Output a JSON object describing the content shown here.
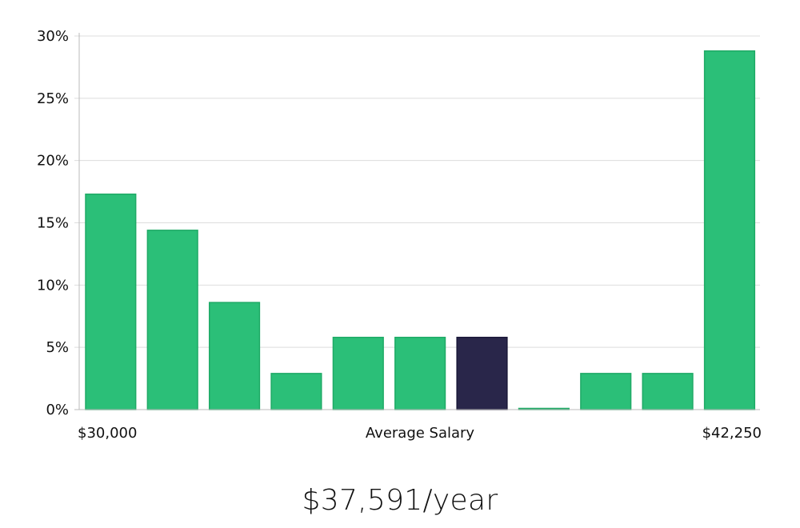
{
  "chart_data": {
    "type": "bar",
    "title": "",
    "xlabel": "Average Salary",
    "ylabel": "",
    "x_min_label": "$30,000",
    "x_max_label": "$42,250",
    "ylim": [
      0,
      30
    ],
    "yticks": [
      "0%",
      "5%",
      "10%",
      "15%",
      "20%",
      "25%",
      "30%"
    ],
    "y_tick_values": [
      0,
      5,
      10,
      15,
      20,
      25,
      30
    ],
    "grid": true,
    "values": [
      17.3,
      14.4,
      8.6,
      2.9,
      5.8,
      5.8,
      5.8,
      0.0,
      2.9,
      2.9,
      28.8
    ],
    "highlight_index": 6,
    "colors": {
      "bar": "#2bbf78",
      "bar_stroke": "#1faa66",
      "highlight": "#29264a",
      "grid": "#dddddd",
      "axis": "#bbbbbb"
    }
  },
  "headline": {
    "salary": "$37,591/year"
  }
}
